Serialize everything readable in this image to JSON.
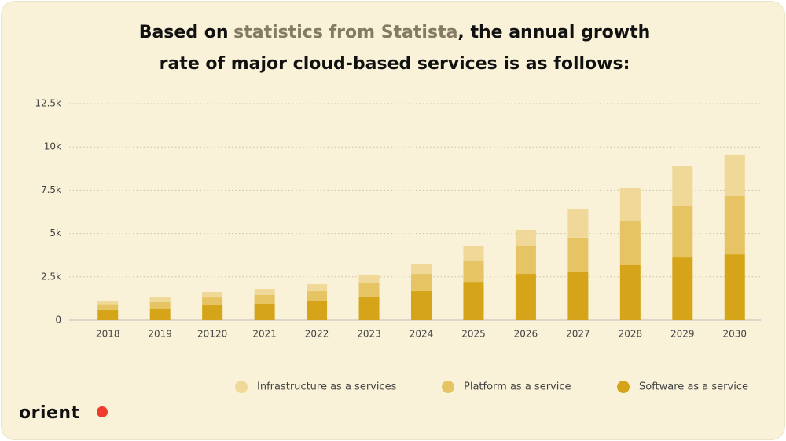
{
  "title": {
    "prefix": "Based on",
    "link": "statistics from Statista",
    "suffix": ", the annual growth rate of major cloud-based services is as follows:"
  },
  "logo": "orient",
  "chart_data": {
    "type": "stacked-bar",
    "categories": [
      "2018",
      "2019",
      "20120",
      "2021",
      "2022",
      "2023",
      "2024",
      "2025",
      "2026",
      "2027",
      "2028",
      "2029",
      "2030"
    ],
    "series": [
      {
        "name": "Software as a service",
        "color": "#d5a419",
        "values": [
          600,
          650,
          860,
          950,
          1090,
          1360,
          1680,
          2170,
          2670,
          2810,
          3170,
          3620,
          3800
        ]
      },
      {
        "name": "Platform as a service",
        "color": "#e6c463",
        "values": [
          280,
          400,
          450,
          500,
          590,
          770,
          990,
          1270,
          1590,
          1950,
          2540,
          2990,
          3360
        ]
      },
      {
        "name": "Infrastructure as a services",
        "color": "#efd898",
        "values": [
          210,
          260,
          320,
          360,
          400,
          500,
          590,
          820,
          950,
          1670,
          1940,
          2270,
          2400
        ]
      }
    ],
    "ylim": [
      0,
      12500
    ],
    "yticks": [
      0,
      {
        "value": 2500,
        "label": "2.5k"
      },
      {
        "value": 5000,
        "label": "5k"
      },
      {
        "value": 7500,
        "label": "7.5k"
      },
      {
        "value": 10000,
        "label": "10k"
      },
      {
        "value": 12500,
        "label": "12.5k"
      }
    ],
    "grid": true
  }
}
